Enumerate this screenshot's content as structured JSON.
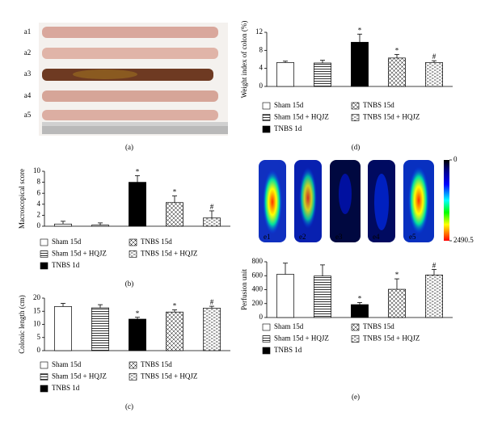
{
  "figure": {
    "panel_labels": [
      "(a)",
      "(b)",
      "(c)",
      "(d)",
      "(e)"
    ],
    "specimen_labels": [
      "a1",
      "a2",
      "a3",
      "a4",
      "a5"
    ],
    "heatmap_labels": [
      "e1",
      "e2",
      "e3",
      "e4",
      "e5"
    ],
    "colorbar": {
      "lim": [
        0,
        2490.5
      ],
      "ticks": [
        0,
        2490.5
      ]
    }
  },
  "chart_data": [
    {
      "type": "bar",
      "ylabel": "Macroscopical score",
      "ylim": [
        0,
        10
      ],
      "yticks": [
        0,
        2,
        4,
        6,
        8,
        10
      ],
      "series": [
        {
          "name": "Sham 15d",
          "pattern": "none",
          "values": [
            0.4
          ],
          "errors": [
            0.5
          ]
        },
        {
          "name": "Sham 15d + HQJZ",
          "pattern": "horizontal",
          "values": [
            0.2
          ],
          "errors": [
            0.4
          ]
        },
        {
          "name": "TNBS 1d",
          "pattern": "solid",
          "values": [
            8.0
          ],
          "errors": [
            1.2
          ],
          "annotation": "*"
        },
        {
          "name": "TNBS 15d",
          "pattern": "diagonal",
          "values": [
            4.3
          ],
          "errors": [
            1.2
          ],
          "annotation": "*"
        },
        {
          "name": "TNBS 15d + HQJZ",
          "pattern": "dotted",
          "values": [
            1.5
          ],
          "errors": [
            1.3
          ],
          "annotation": "#"
        }
      ]
    },
    {
      "type": "bar",
      "ylabel": "Colonic length (cm)",
      "ylim": [
        0,
        20
      ],
      "yticks": [
        0,
        5,
        10,
        15,
        20
      ],
      "series": [
        {
          "name": "Sham 15d",
          "pattern": "none",
          "values": [
            16.8
          ],
          "errors": [
            1.2
          ]
        },
        {
          "name": "Sham 15d + HQJZ",
          "pattern": "horizontal",
          "values": [
            16.3
          ],
          "errors": [
            1.2
          ]
        },
        {
          "name": "TNBS 1d",
          "pattern": "solid",
          "values": [
            12.0
          ],
          "errors": [
            0.7
          ],
          "annotation": "*"
        },
        {
          "name": "TNBS 15d",
          "pattern": "diagonal",
          "values": [
            14.7
          ],
          "errors": [
            0.8
          ],
          "annotation": "*"
        },
        {
          "name": "TNBS 15d + HQJZ",
          "pattern": "dotted",
          "values": [
            16.2
          ],
          "errors": [
            0.7
          ],
          "annotation": "#"
        }
      ]
    },
    {
      "type": "bar",
      "ylabel": "Weight index of colon (%)",
      "ylim": [
        0,
        12
      ],
      "yticks": [
        0,
        4,
        8,
        12
      ],
      "series": [
        {
          "name": "Sham 15d",
          "pattern": "none",
          "values": [
            5.3
          ],
          "errors": [
            0.3
          ]
        },
        {
          "name": "Sham 15d + HQJZ",
          "pattern": "horizontal",
          "values": [
            5.2
          ],
          "errors": [
            0.6
          ]
        },
        {
          "name": "TNBS 1d",
          "pattern": "solid",
          "values": [
            9.8
          ],
          "errors": [
            1.8
          ],
          "annotation": "*"
        },
        {
          "name": "TNBS 15d",
          "pattern": "diagonal",
          "values": [
            6.3
          ],
          "errors": [
            0.8
          ],
          "annotation": "*"
        },
        {
          "name": "TNBS 15d + HQJZ",
          "pattern": "dotted",
          "values": [
            5.3
          ],
          "errors": [
            0.4
          ],
          "annotation": "#"
        }
      ]
    },
    {
      "type": "bar",
      "ylabel": "Perfusion unit",
      "ylim": [
        0,
        800
      ],
      "yticks": [
        0,
        200,
        400,
        600,
        800
      ],
      "series": [
        {
          "name": "Sham 15d",
          "pattern": "none",
          "values": [
            620
          ],
          "errors": [
            160
          ]
        },
        {
          "name": "Sham 15d + HQJZ",
          "pattern": "horizontal",
          "values": [
            595
          ],
          "errors": [
            160
          ]
        },
        {
          "name": "TNBS 1d",
          "pattern": "solid",
          "values": [
            185
          ],
          "errors": [
            30
          ],
          "annotation": "*"
        },
        {
          "name": "TNBS 15d",
          "pattern": "diagonal",
          "values": [
            405
          ],
          "errors": [
            150
          ],
          "annotation": "*"
        },
        {
          "name": "TNBS 15d + HQJZ",
          "pattern": "dotted",
          "values": [
            610
          ],
          "errors": [
            80
          ],
          "annotation": "#"
        }
      ]
    }
  ]
}
